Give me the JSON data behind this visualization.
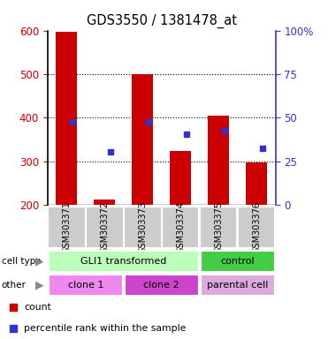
{
  "title": "GDS3550 / 1381478_at",
  "samples": [
    "GSM303371",
    "GSM303372",
    "GSM303373",
    "GSM303374",
    "GSM303375",
    "GSM303376"
  ],
  "counts": [
    597,
    212,
    500,
    325,
    405,
    297
  ],
  "percentiles": [
    390,
    322,
    390,
    362,
    370,
    330
  ],
  "baseline": 200,
  "ylim_left": [
    200,
    600
  ],
  "ylim_right": [
    0,
    100
  ],
  "yticks_left": [
    200,
    300,
    400,
    500,
    600
  ],
  "yticks_right": [
    0,
    25,
    50,
    75,
    100
  ],
  "ytick_labels_right": [
    "0",
    "25",
    "50",
    "75",
    "100%"
  ],
  "bar_color": "#cc0000",
  "dot_color": "#3333cc",
  "bar_width": 0.55,
  "cell_type_labels": [
    "GLI1 transformed",
    "control"
  ],
  "cell_type_color_gli": "#bbffbb",
  "cell_type_color_ctrl": "#44cc44",
  "other_labels": [
    "clone 1",
    "clone 2",
    "parental cell"
  ],
  "other_color_1": "#ee88ee",
  "other_color_2": "#cc44cc",
  "other_color_3": "#ddaadd",
  "legend_count_color": "#cc0000",
  "legend_pct_color": "#3333cc",
  "axis_left_color": "#cc0000",
  "axis_right_color": "#3333cc",
  "background_color": "#ffffff",
  "sample_area_color": "#cccccc",
  "grid_color": "#000000",
  "spine_color": "#000000",
  "label_arrow_color": "#888888"
}
